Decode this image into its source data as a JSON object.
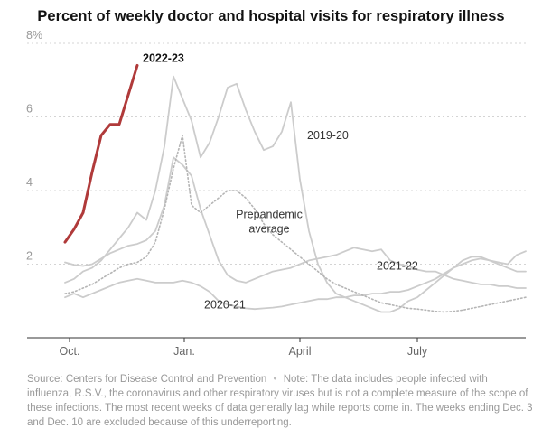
{
  "title": "Percent of weekly doctor and hospital visits for respiratory illness",
  "source": {
    "label": "Source: Centers for Disease Control and Prevention",
    "separator": "•",
    "note": "Note: The data includes people infected with influenza, R.S.V., the coronavirus and other respiratory viruses but is not a complete measure of the scope of these infections. The most recent weeks of data generally lag while reports come in. The weeks ending Dec. 3 and Dec. 10 are excluded because of this underreporting."
  },
  "colors": {
    "highlight": "#b03a3a",
    "past": "#cccccc",
    "grid": "#d4d4d4",
    "axis": "#333333",
    "tick": "#999999"
  },
  "chart_data": {
    "type": "line",
    "title": "Percent of weekly doctor and hospital visits for respiratory illness",
    "xlabel": "",
    "ylabel": "",
    "x_unit": "week of season (0 = first week of October)",
    "xlim": [
      -1,
      51
    ],
    "ylim": [
      0,
      8
    ],
    "y_ticks": [
      {
        "value": 2,
        "label": "2"
      },
      {
        "value": 4,
        "label": "4"
      },
      {
        "value": 6,
        "label": "6"
      },
      {
        "value": 8,
        "label": "8%"
      }
    ],
    "x_ticks": [
      {
        "value": 0.5,
        "label": "Oct."
      },
      {
        "value": 13.2,
        "label": "Jan."
      },
      {
        "value": 26,
        "label": "April"
      },
      {
        "value": 39,
        "label": "July"
      }
    ],
    "grid": true,
    "series": [
      {
        "name": "2019-20",
        "style": "solid",
        "label_at": [
          26.8,
          5.4
        ],
        "x": [
          0,
          1,
          2,
          3,
          4,
          5,
          6,
          7,
          8,
          9,
          10,
          11,
          12,
          13,
          14,
          15,
          16,
          17,
          18,
          19,
          20,
          21,
          22,
          23,
          24,
          25,
          26,
          27,
          28,
          29,
          30,
          31,
          32,
          33,
          34,
          35,
          36,
          37,
          38,
          39,
          40,
          41,
          42,
          43,
          44,
          45,
          46,
          47,
          48,
          49,
          50,
          51
        ],
        "y": [
          1.5,
          1.6,
          1.8,
          1.9,
          2.1,
          2.4,
          2.7,
          3.0,
          3.4,
          3.2,
          4.0,
          5.2,
          7.1,
          6.5,
          5.9,
          4.9,
          5.3,
          6.0,
          6.8,
          6.9,
          6.2,
          5.6,
          5.1,
          5.2,
          5.6,
          6.4,
          4.3,
          2.9,
          2.0,
          1.5,
          1.2,
          1.1,
          1.0,
          0.9,
          0.8,
          0.7,
          0.7,
          0.8,
          1.0,
          1.1,
          1.3,
          1.5,
          1.7,
          1.9,
          2.1,
          2.2,
          2.2,
          2.1,
          2.0,
          1.9,
          1.8,
          1.8
        ]
      },
      {
        "name": "2020-21",
        "style": "solid",
        "label_at": [
          15.4,
          0.8
        ],
        "x": [
          0,
          1,
          2,
          3,
          4,
          5,
          6,
          7,
          8,
          9,
          10,
          11,
          12,
          13,
          14,
          15,
          16,
          17,
          18,
          19,
          20,
          21,
          22,
          23,
          24,
          25,
          26,
          27,
          28,
          29,
          30,
          31,
          32,
          33,
          34,
          35,
          36,
          37,
          38,
          39,
          40,
          41,
          42,
          43,
          44,
          45,
          46,
          47,
          48,
          49,
          50,
          51
        ],
        "y": [
          1.1,
          1.2,
          1.1,
          1.2,
          1.3,
          1.4,
          1.5,
          1.55,
          1.6,
          1.55,
          1.5,
          1.5,
          1.5,
          1.55,
          1.5,
          1.4,
          1.25,
          1.0,
          0.9,
          0.85,
          0.8,
          0.78,
          0.8,
          0.82,
          0.85,
          0.9,
          0.95,
          1.0,
          1.05,
          1.05,
          1.1,
          1.1,
          1.15,
          1.15,
          1.2,
          1.2,
          1.25,
          1.25,
          1.3,
          1.4,
          1.5,
          1.6,
          1.75,
          1.9,
          2.0,
          2.1,
          2.15,
          2.1,
          2.05,
          2.0,
          2.25,
          2.35
        ]
      },
      {
        "name": "2021-22",
        "style": "solid",
        "label_at": [
          34.5,
          1.85
        ],
        "x": [
          0,
          1,
          2,
          3,
          4,
          5,
          6,
          7,
          8,
          9,
          10,
          11,
          12,
          13,
          14,
          15,
          16,
          17,
          18,
          19,
          20,
          21,
          22,
          23,
          24,
          25,
          26,
          27,
          28,
          29,
          30,
          31,
          32,
          33,
          34,
          35,
          36,
          37,
          38,
          39,
          40,
          41,
          42,
          43,
          44,
          45,
          46,
          47,
          48,
          49,
          50,
          51
        ],
        "y": [
          2.05,
          1.98,
          1.95,
          2.0,
          2.15,
          2.3,
          2.4,
          2.5,
          2.55,
          2.65,
          2.9,
          3.6,
          4.9,
          4.7,
          4.4,
          3.5,
          2.8,
          2.1,
          1.7,
          1.55,
          1.5,
          1.6,
          1.7,
          1.8,
          1.85,
          1.9,
          2.0,
          2.1,
          2.15,
          2.2,
          2.25,
          2.35,
          2.45,
          2.4,
          2.35,
          2.4,
          2.1,
          2.0,
          1.95,
          1.85,
          1.8,
          1.8,
          1.7,
          1.6,
          1.55,
          1.5,
          1.45,
          1.45,
          1.4,
          1.4,
          1.35,
          1.35
        ]
      },
      {
        "name": "Prepandemic average",
        "style": "dotted",
        "label_at": [
          22.6,
          3.25
        ],
        "x": [
          0,
          1,
          2,
          3,
          4,
          5,
          6,
          7,
          8,
          9,
          10,
          11,
          12,
          13,
          14,
          15,
          16,
          17,
          18,
          19,
          20,
          21,
          22,
          23,
          24,
          25,
          26,
          27,
          28,
          29,
          30,
          31,
          32,
          33,
          34,
          35,
          36,
          37,
          38,
          39,
          40,
          41,
          42,
          43,
          44,
          45,
          46,
          47,
          48,
          49,
          50,
          51
        ],
        "y": [
          1.2,
          1.25,
          1.35,
          1.45,
          1.6,
          1.75,
          1.9,
          2.0,
          2.05,
          2.2,
          2.6,
          3.5,
          4.6,
          5.5,
          3.6,
          3.4,
          3.6,
          3.8,
          4.0,
          4.0,
          3.8,
          3.5,
          3.1,
          2.8,
          2.6,
          2.4,
          2.2,
          2.0,
          1.8,
          1.6,
          1.45,
          1.35,
          1.25,
          1.15,
          1.05,
          0.95,
          0.9,
          0.85,
          0.8,
          0.78,
          0.75,
          0.72,
          0.7,
          0.72,
          0.75,
          0.8,
          0.85,
          0.9,
          0.95,
          1.0,
          1.05,
          1.1
        ]
      },
      {
        "name": "2022-23",
        "style": "highlight",
        "label_at": [
          8.6,
          7.5
        ],
        "x": [
          0,
          1,
          2,
          3,
          4,
          5,
          6,
          7,
          8
        ],
        "y": [
          2.6,
          2.95,
          3.4,
          4.5,
          5.5,
          5.8,
          5.8,
          6.6,
          7.4
        ]
      }
    ]
  }
}
